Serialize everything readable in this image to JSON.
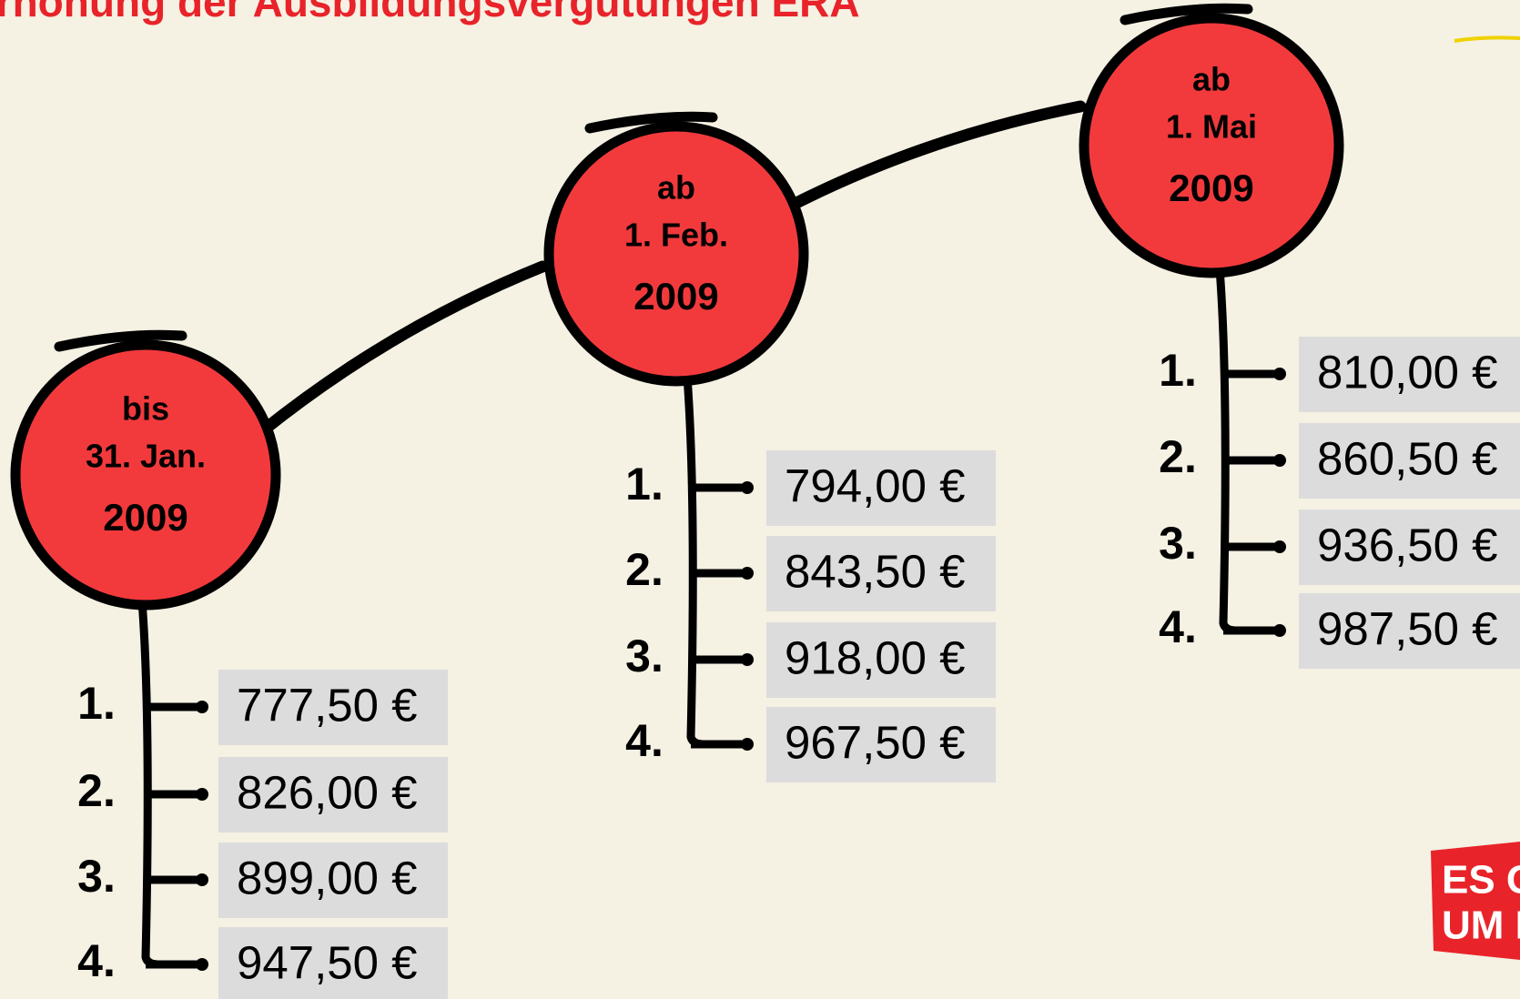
{
  "header": {
    "title": "Erhöhung der Ausbildungsvergütungen ERA"
  },
  "periods": [
    {
      "label": [
        "bis",
        "31. Jan."
      ],
      "year": "2009",
      "items": [
        {
          "num": "1.",
          "amount": "777,50 €"
        },
        {
          "num": "2.",
          "amount": "826,00 €"
        },
        {
          "num": "3.",
          "amount": "899,00 €"
        },
        {
          "num": "4.",
          "amount": "947,50 €"
        }
      ]
    },
    {
      "label": [
        "ab",
        "1. Feb."
      ],
      "year": "2009",
      "items": [
        {
          "num": "1.",
          "amount": "794,00 €"
        },
        {
          "num": "2.",
          "amount": "843,50 €"
        },
        {
          "num": "3.",
          "amount": "918,00 €"
        },
        {
          "num": "4.",
          "amount": "967,50 €"
        }
      ]
    },
    {
      "label": [
        "ab",
        "1. Mai"
      ],
      "year": "2009",
      "items": [
        {
          "num": "1.",
          "amount": "810,00 €"
        },
        {
          "num": "2.",
          "amount": "860,50 €"
        },
        {
          "num": "3.",
          "amount": "936,50 €"
        },
        {
          "num": "4.",
          "amount": "987,50 €"
        }
      ]
    }
  ],
  "logo": [
    "ES GEHT",
    "UM MEHR"
  ]
}
